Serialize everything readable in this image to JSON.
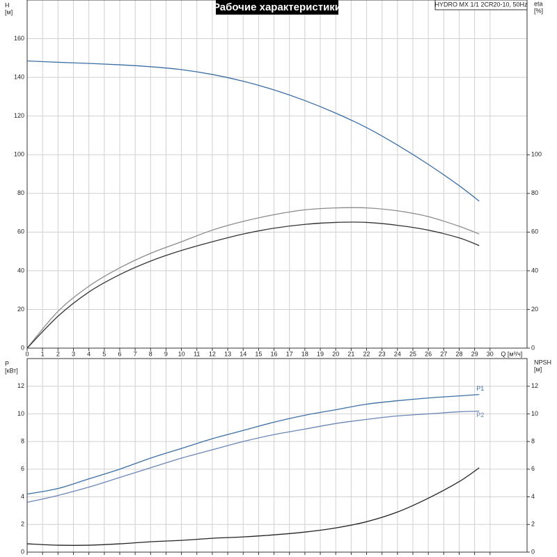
{
  "chart_data": [
    {
      "type": "line",
      "title": "Рабочие характеристики",
      "subtitle": "HYDRO MX 1/1 2CR20-10, 50Hz",
      "ylabel": "H",
      "ylabel_unit": "[м]",
      "y2label": "eta",
      "y2label_unit": "[%]",
      "xlabel": "Q [м³/ч]",
      "x": [
        0,
        2,
        4,
        6,
        8,
        10,
        12,
        14,
        16,
        18,
        20,
        22,
        24,
        26,
        28,
        29.3
      ],
      "series": [
        {
          "color": "#3a6ea5",
          "axis": "y",
          "values": [
            148.5,
            147.8,
            147.2,
            146.5,
            145.5,
            144,
            141.5,
            138,
            133.5,
            128,
            121.5,
            114,
            105,
            95,
            84,
            76
          ]
        },
        {
          "color": "#8a8a8a",
          "axis": "y2",
          "values": [
            0,
            19,
            32,
            41.5,
            49,
            55,
            61,
            65.5,
            69,
            71.5,
            72.5,
            72.5,
            71,
            68,
            63,
            59
          ]
        },
        {
          "color": "#333333",
          "axis": "y2",
          "values": [
            0,
            16.5,
            29,
            38,
            45,
            50.5,
            55,
            59,
            62,
            64,
            65,
            65,
            63.5,
            61,
            57,
            53
          ]
        }
      ],
      "xlim": [
        0,
        32.4
      ],
      "xticks": [
        0,
        1,
        2,
        3,
        4,
        5,
        6,
        7,
        8,
        9,
        10,
        11,
        12,
        13,
        14,
        15,
        16,
        17,
        18,
        19,
        20,
        21,
        22,
        23,
        24,
        25,
        26,
        27,
        28,
        29,
        30
      ],
      "ylim": [
        0,
        180
      ],
      "yticks": [
        0,
        20,
        40,
        60,
        80,
        100,
        120,
        140,
        160
      ],
      "y2lim": [
        0,
        180
      ],
      "y2ticks": [
        0,
        20,
        40,
        60,
        80,
        100
      ],
      "grid": true
    },
    {
      "type": "line",
      "ylabel": "P",
      "ylabel_unit": "[кВт]",
      "y2label": "NPSH",
      "y2label_unit": "[м]",
      "x": [
        0,
        2,
        4,
        6,
        8,
        10,
        12,
        14,
        16,
        18,
        20,
        22,
        24,
        26,
        28,
        29.3
      ],
      "series": [
        {
          "name": "P1",
          "color": "#3a6ea5",
          "axis": "y",
          "values": [
            4.2,
            4.6,
            5.3,
            6.0,
            6.8,
            7.5,
            8.2,
            8.8,
            9.4,
            9.9,
            10.3,
            10.7,
            10.95,
            11.15,
            11.3,
            11.4
          ]
        },
        {
          "name": "P2",
          "color": "#6a85b8",
          "axis": "y",
          "values": [
            3.6,
            4.1,
            4.7,
            5.4,
            6.1,
            6.8,
            7.4,
            8.0,
            8.5,
            8.9,
            9.3,
            9.6,
            9.85,
            10.0,
            10.15,
            10.2
          ]
        },
        {
          "color": "#222222",
          "axis": "y2",
          "values": [
            0.6,
            0.5,
            0.5,
            0.6,
            0.75,
            0.85,
            1.0,
            1.1,
            1.25,
            1.45,
            1.75,
            2.2,
            2.9,
            3.9,
            5.1,
            6.1
          ]
        }
      ],
      "xlim": [
        0,
        32.4
      ],
      "xticks": [
        0,
        1,
        2,
        3,
        4,
        5,
        6,
        7,
        8,
        9,
        10,
        11,
        12,
        13,
        14,
        15,
        16,
        17,
        18,
        19,
        20,
        21,
        22,
        23,
        24,
        25,
        26,
        27,
        28,
        29,
        30
      ],
      "ylim": [
        0,
        14
      ],
      "yticks": [
        0,
        2,
        4,
        6,
        8,
        10,
        12
      ],
      "y2lim": [
        0,
        14
      ],
      "y2ticks": [
        0,
        2,
        4,
        6,
        8,
        10,
        12
      ],
      "grid": true
    }
  ]
}
